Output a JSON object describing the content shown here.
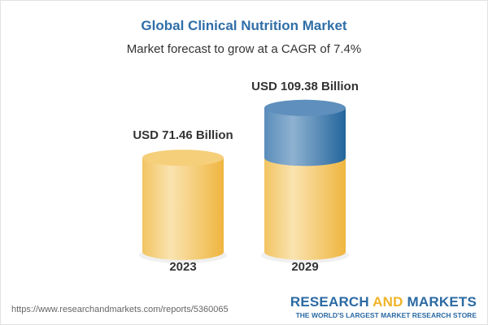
{
  "chart_data": {
    "type": "bar",
    "title": "Global Clinical Nutrition Market",
    "subtitle": "Market forecast to grow at a CAGR of 7.4%",
    "categories": [
      "2023",
      "2029"
    ],
    "values": [
      71.46,
      109.38
    ],
    "data_labels": [
      "USD 71.46 Billion",
      "USD 109.38 Billion"
    ],
    "unit": "USD Billion",
    "style": "3d-cylinder",
    "colors": {
      "base": "#f3c660",
      "growth": "#4f86b5",
      "title": "#2f6ea8"
    }
  },
  "footer": {
    "url": "https://www.researchandmarkets.com/reports/5360065",
    "brand_part1": "RESEARCH ",
    "brand_part2": "AND",
    "brand_part3": " MARKETS",
    "tagline": "THE WORLD'S LARGEST MARKET RESEARCH STORE"
  }
}
